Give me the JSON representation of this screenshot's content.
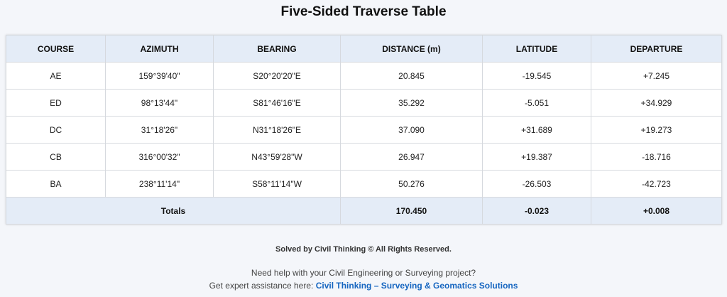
{
  "title": "Five-Sided Traverse Table",
  "table": {
    "headers": [
      "COURSE",
      "AZIMUTH",
      "BEARING",
      "DISTANCE (m)",
      "LATITUDE",
      "DEPARTURE"
    ],
    "rows": [
      [
        "AE",
        "159°39'40\"",
        "S20°20'20\"E",
        "20.845",
        "-19.545",
        "+7.245"
      ],
      [
        "ED",
        "98°13'44\"",
        "S81°46'16\"E",
        "35.292",
        "-5.051",
        "+34.929"
      ],
      [
        "DC",
        "31°18'26\"",
        "N31°18'26\"E",
        "37.090",
        "+31.689",
        "+19.273"
      ],
      [
        "CB",
        "316°00'32\"",
        "N43°59'28\"W",
        "26.947",
        "+19.387",
        "-18.716"
      ],
      [
        "BA",
        "238°11'14\"",
        "S58°11'14\"W",
        "50.276",
        "-26.503",
        "-42.723"
      ]
    ],
    "totals": {
      "label": "Totals",
      "distance": "170.450",
      "latitude": "-0.023",
      "departure": "+0.008"
    }
  },
  "footer": {
    "copyright": "Solved by Civil Thinking © All Rights Reserved.",
    "help_line": "Need help with your Civil Engineering or Surveying project?",
    "assist_prefix": "Get expert assistance here:",
    "link_text": "Civil Thinking – Surveying & Geomatics Solutions",
    "link_color": "#1565c0"
  },
  "colors": {
    "header_bg": "#e4ecf7",
    "page_bg": "#f4f6fa"
  }
}
